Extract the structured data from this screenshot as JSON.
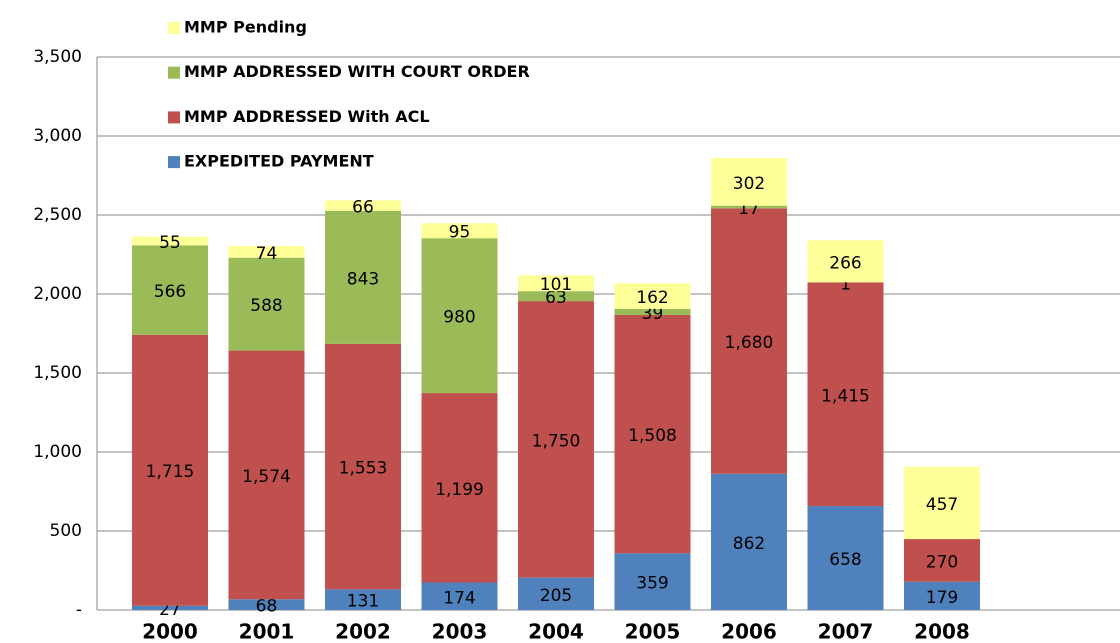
{
  "chart_data": {
    "type": "stacked-bar",
    "categories": [
      "2000",
      "2001",
      "2002",
      "2003",
      "2004",
      "2005",
      "2006",
      "2007",
      "2008"
    ],
    "series": [
      {
        "name": "EXPEDITED PAYMENT",
        "color": "#4f81bd",
        "values": [
          27,
          68,
          131,
          174,
          205,
          359,
          862,
          658,
          179
        ]
      },
      {
        "name": "MMP ADDRESSED With ACL",
        "color": "#c0504d",
        "values": [
          1715,
          1574,
          1553,
          1199,
          1750,
          1508,
          1680,
          1415,
          270
        ],
        "value_labels": [
          "1,715",
          "1,574",
          "1,553",
          "1,199",
          "1,750",
          "1,508",
          "1,680",
          "1,415",
          "270"
        ]
      },
      {
        "name": "MMP ADDRESSED WITH COURT ORDER",
        "color": "#9bbb59",
        "values": [
          566,
          588,
          843,
          980,
          63,
          39,
          17,
          1,
          null
        ]
      },
      {
        "name": "MMP Pending",
        "color": "#ffff99",
        "values": [
          55,
          74,
          66,
          95,
          101,
          162,
          302,
          266,
          457
        ]
      }
    ],
    "ylim": [
      0,
      3500
    ],
    "yticks": [
      {
        "value": 0,
        "label": "-"
      },
      500,
      {
        "value": 1000,
        "label": "1,000"
      },
      {
        "value": 1500,
        "label": "1,500"
      },
      {
        "value": 2000,
        "label": "2,000"
      },
      {
        "value": 2500,
        "label": "2,500"
      },
      {
        "value": 3000,
        "label": "3,000"
      },
      {
        "value": 3500,
        "label": "3,500"
      }
    ],
    "grid": true
  }
}
